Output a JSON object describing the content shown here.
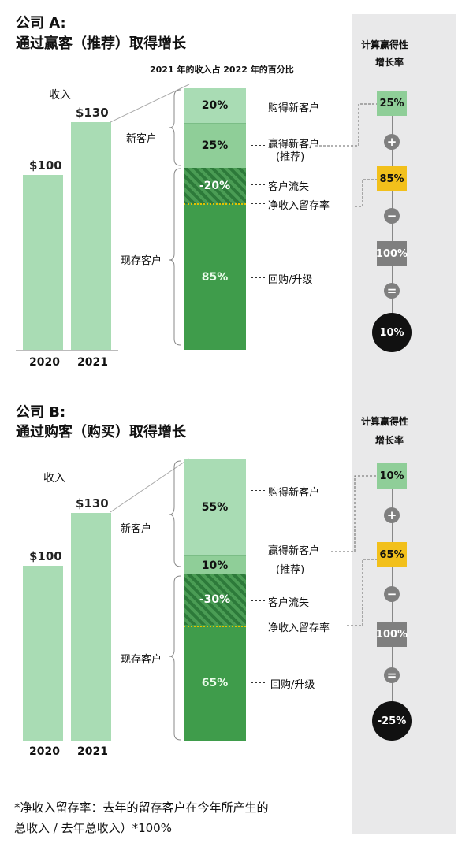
{
  "sections": [
    {
      "title1": "公司 A:",
      "title2": "通过赢客（推荐）取得增长",
      "bar_header": "2021 年的收入占 2022 年的百分比",
      "revenue_label": "收入",
      "years": [
        "2020",
        "2021"
      ],
      "values": [
        "$100",
        "$130"
      ],
      "group_new": "新客户",
      "group_existing": "现存客户",
      "segments": [
        {
          "label": "20%"
        },
        {
          "label": "25%"
        },
        {
          "label": "-20%"
        },
        {
          "label": "85%"
        }
      ],
      "right_labels": {
        "acquire": "购得新客户",
        "win1": "赢得新客户",
        "win2": "(推荐)",
        "churn": "客户流失",
        "nrr": "净收入留存率",
        "upsell": "回购/升级"
      },
      "calc_title1": "计算赢得性",
      "calc_title2": "增长率",
      "calc": [
        "25%",
        "85%",
        "100%",
        "10%"
      ],
      "ops": [
        "+",
        "−",
        "="
      ]
    },
    {
      "title1": "公司 B:",
      "title2": "通过购客（购买）取得增长",
      "revenue_label": "收入",
      "years": [
        "2020",
        "2021"
      ],
      "values": [
        "$100",
        "$130"
      ],
      "group_new": "新客户",
      "group_existing": "现存客户",
      "segments": [
        {
          "label": "55%"
        },
        {
          "label": "10%"
        },
        {
          "label": "-30%"
        },
        {
          "label": "65%"
        }
      ],
      "right_labels": {
        "acquire": "购得新客户",
        "win1": "赢得新客户",
        "win2": "(推荐)",
        "churn": "客户流失",
        "nrr": "净收入留存率",
        "upsell": "回购/升级"
      },
      "calc_title1": "计算赢得性",
      "calc_title2": "增长率",
      "calc": [
        "10%",
        "65%",
        "100%",
        "-25%"
      ],
      "ops": [
        "+",
        "−",
        "="
      ]
    }
  ],
  "footnote1": "*净收入留存率：去年的留存客户在今年所产生的",
  "footnote2": "总收入 / 去年总收入）*100%",
  "colors": {
    "light_green": "#a9dcb4",
    "mid_green": "#8fce98",
    "dark_green": "#3f9c4b",
    "yellow": "#f2c01b",
    "gray_box": "#7f7f7f"
  }
}
